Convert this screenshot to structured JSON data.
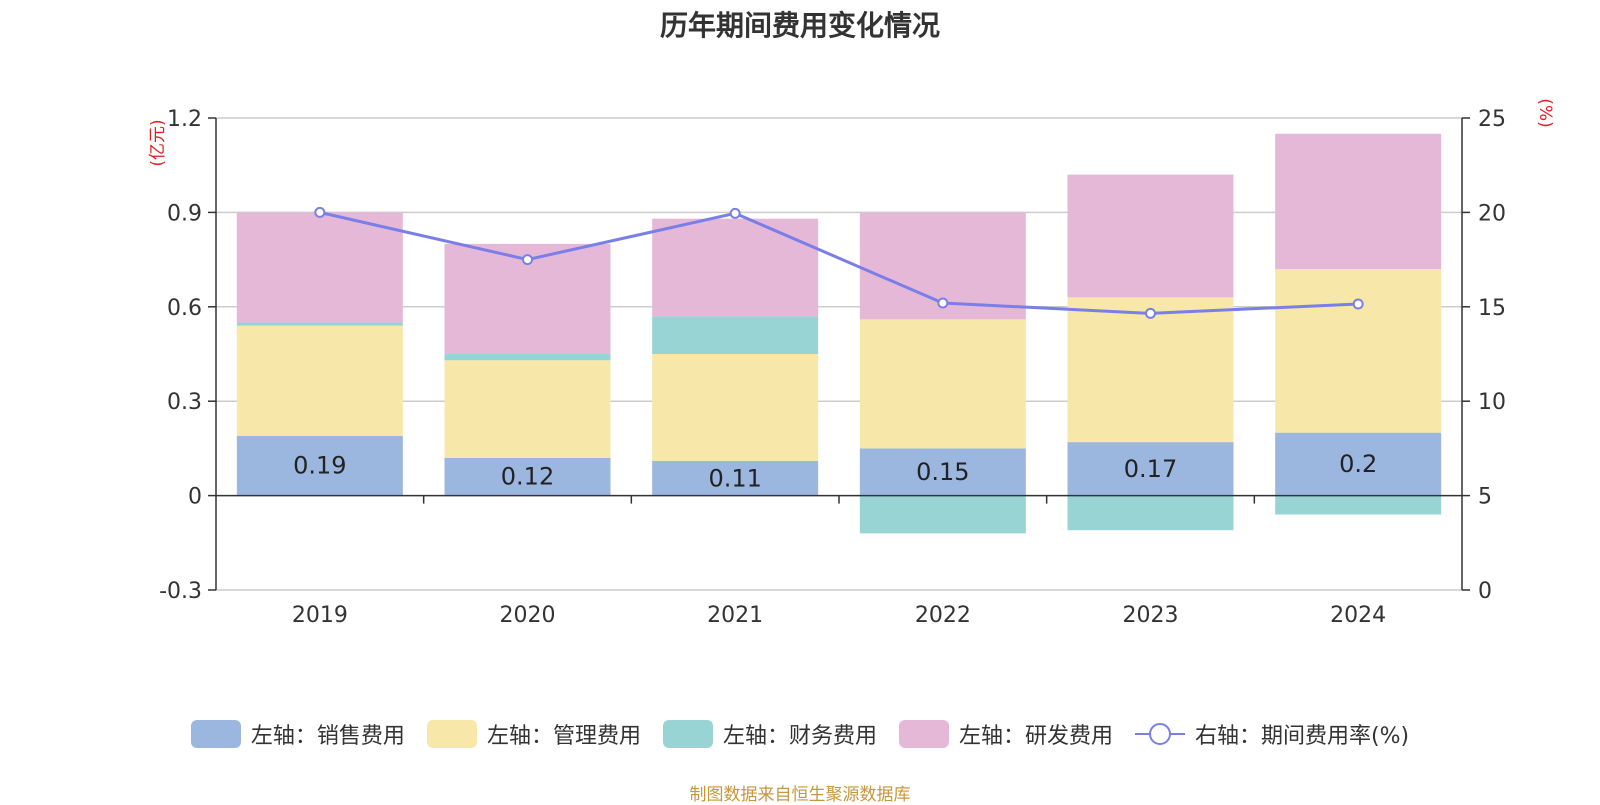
{
  "title": "历年期间费用变化情况",
  "source_note": "制图数据来自恒生聚源数据库",
  "chart_data": {
    "type": "bar",
    "stacked": true,
    "categories": [
      "2019",
      "2020",
      "2021",
      "2022",
      "2023",
      "2024"
    ],
    "left_axis": {
      "unit_label": "(亿元)",
      "ticks": [
        "1.2",
        "0.9",
        "0.6",
        "0.3",
        "0",
        "-0.3"
      ],
      "ylim": [
        -0.3,
        1.2
      ],
      "tick_values": [
        1.2,
        0.9,
        0.6,
        0.3,
        0,
        -0.3
      ]
    },
    "right_axis": {
      "unit_label": "(%)",
      "ticks": [
        "25",
        "20",
        "15",
        "10",
        "5",
        "0"
      ],
      "ylim": [
        0,
        25
      ],
      "tick_values": [
        25,
        20,
        15,
        10,
        5,
        0
      ]
    },
    "series": [
      {
        "name": "左轴：销售费用",
        "axis": "left",
        "color": "#9bb7e0",
        "values": [
          0.19,
          0.12,
          0.11,
          0.15,
          0.17,
          0.2
        ],
        "labels": [
          "0.19",
          "0.12",
          "0.11",
          "0.15",
          "0.17",
          "0.2"
        ]
      },
      {
        "name": "左轴：管理费用",
        "axis": "left",
        "color": "#f7e7a8",
        "values": [
          0.35,
          0.31,
          0.34,
          0.41,
          0.46,
          0.52
        ]
      },
      {
        "name": "左轴：财务费用",
        "axis": "left",
        "color": "#98d4d4",
        "values": [
          0.01,
          0.02,
          0.12,
          -0.12,
          -0.11,
          -0.06
        ]
      },
      {
        "name": "左轴：研发费用",
        "axis": "left",
        "color": "#e6b8d8",
        "values": [
          0.35,
          0.35,
          0.31,
          0.34,
          0.39,
          0.43
        ]
      },
      {
        "name": "右轴：期间费用率(%)",
        "axis": "right",
        "type": "line",
        "color": "#7a7fe8",
        "values": [
          20.0,
          17.5,
          19.95,
          15.2,
          14.65,
          15.15
        ]
      }
    ],
    "grid": true,
    "legend_position": "bottom"
  }
}
